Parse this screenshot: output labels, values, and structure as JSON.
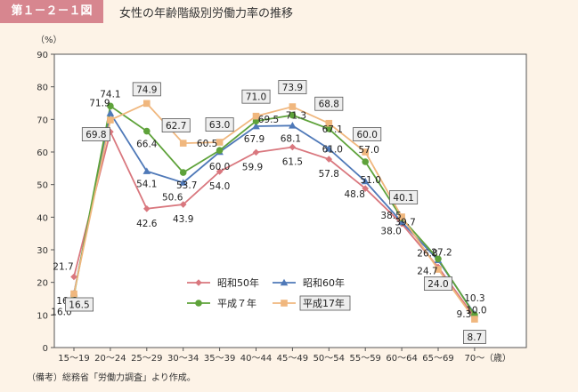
{
  "header": {
    "figure_label": "第１－２－１図",
    "title": "女性の年齢階級別労働力率の推移"
  },
  "footnote": "（備考）総務省「労働力調査」より作成。",
  "chart_data": {
    "type": "line",
    "ylabel": "（%）",
    "xunit": "（歳）",
    "ylim": [
      0,
      90
    ],
    "yticks": [
      0,
      10,
      20,
      30,
      40,
      50,
      60,
      70,
      80,
      90
    ],
    "grid": false,
    "legend": "center",
    "categories": [
      "15～19",
      "20～24",
      "25～29",
      "30～34",
      "35～39",
      "40～44",
      "45～49",
      "50～54",
      "55～59",
      "60～64",
      "65～69",
      "70～"
    ],
    "series": [
      {
        "name": "昭和50年",
        "color": "#d9777e",
        "marker": "diamond",
        "values": [
          21.7,
          66.2,
          42.6,
          43.9,
          54.0,
          59.9,
          61.5,
          57.8,
          48.8,
          38.0,
          24.7,
          9.3
        ]
      },
      {
        "name": "昭和60年",
        "color": "#4f79b8",
        "marker": "triangle",
        "values": [
          16.6,
          71.9,
          54.1,
          50.6,
          60.0,
          67.9,
          68.1,
          61.0,
          51.0,
          38.5,
          26.8,
          10.3
        ]
      },
      {
        "name": "平成７年",
        "color": "#5ea23a",
        "marker": "circle",
        "values": [
          16.0,
          74.1,
          66.4,
          53.7,
          60.5,
          69.5,
          71.3,
          67.1,
          57.0,
          39.7,
          27.2,
          10.0
        ]
      },
      {
        "name": "平成17年",
        "color": "#f0b77e",
        "marker": "square",
        "boxed": true,
        "values": [
          16.5,
          69.8,
          74.9,
          62.7,
          63.0,
          71.0,
          73.9,
          68.8,
          60.0,
          40.1,
          24.0,
          8.7
        ]
      }
    ]
  }
}
